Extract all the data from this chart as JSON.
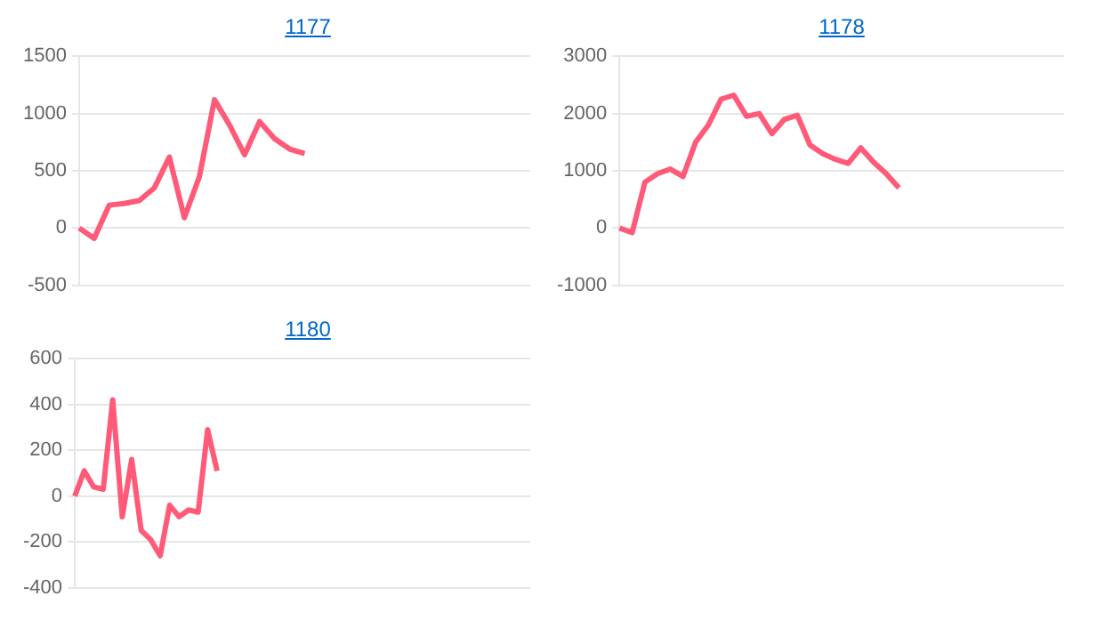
{
  "chart_data": [
    {
      "type": "line",
      "title": "1177",
      "categories": [
        null,
        null,
        null,
        null,
        null,
        null,
        null,
        null,
        null,
        null,
        null,
        null,
        null,
        null,
        null,
        null,
        null,
        null,
        null,
        null,
        null,
        null,
        null,
        null,
        null,
        null,
        null,
        null,
        null,
        null,
        null
      ],
      "series": [
        {
          "color": "#ff5a78",
          "values": [
            0,
            -90,
            200,
            215,
            240,
            350,
            620,
            90,
            450,
            1120,
            900,
            640,
            930,
            780,
            690,
            650,
            null,
            null,
            null,
            null,
            null,
            null,
            null,
            null,
            null,
            null,
            null,
            null,
            null,
            null,
            null
          ]
        }
      ],
      "ylim": [
        -500,
        1500
      ],
      "yticks": [
        -500,
        0,
        500,
        1000,
        1500
      ],
      "grid": "y",
      "tick_labels": "y",
      "marker": "none",
      "line_style": "solid",
      "legend": false
    },
    {
      "type": "line",
      "title": "1178",
      "categories": [
        null,
        null,
        null,
        null,
        null,
        null,
        null,
        null,
        null,
        null,
        null,
        null,
        null,
        null,
        null,
        null,
        null,
        null,
        null,
        null,
        null,
        null,
        null,
        null,
        null,
        null,
        null,
        null,
        null,
        null,
        null,
        null,
        null,
        null,
        null,
        null
      ],
      "series": [
        {
          "color": "#ff5a78",
          "values": [
            0,
            -80,
            800,
            950,
            1030,
            900,
            1500,
            1800,
            2250,
            2320,
            1950,
            2000,
            1650,
            1900,
            1970,
            1450,
            1300,
            1200,
            1130,
            1400,
            1150,
            950,
            700,
            null,
            null,
            null,
            null,
            null,
            null,
            null,
            null,
            null,
            null,
            null,
            null,
            null
          ]
        }
      ],
      "ylim": [
        -1000,
        3000
      ],
      "yticks": [
        -1000,
        0,
        1000,
        2000,
        3000
      ],
      "grid": "y",
      "tick_labels": "y",
      "marker": "none",
      "line_style": "solid",
      "legend": false
    },
    {
      "type": "line",
      "title": "1180",
      "categories": [
        null,
        null,
        null,
        null,
        null,
        null,
        null,
        null,
        null,
        null,
        null,
        null,
        null,
        null,
        null,
        null,
        null,
        null,
        null,
        null,
        null,
        null,
        null,
        null,
        null,
        null,
        null,
        null,
        null,
        null,
        null,
        null,
        null,
        null,
        null,
        null,
        null,
        null,
        null,
        null,
        null,
        null,
        null,
        null,
        null,
        null,
        null,
        null,
        null
      ],
      "series": [
        {
          "color": "#ff5a78",
          "values": [
            0,
            110,
            40,
            30,
            420,
            -90,
            160,
            -150,
            -190,
            -260,
            -40,
            -90,
            -60,
            -70,
            290,
            110,
            null,
            null,
            null,
            null,
            null,
            null,
            null,
            null,
            null,
            null,
            null,
            null,
            null,
            null,
            null,
            null,
            null,
            null,
            null,
            null,
            null,
            null,
            null,
            null,
            null,
            null,
            null,
            null,
            null,
            null,
            null,
            null,
            null
          ]
        }
      ],
      "ylim": [
        -400,
        600
      ],
      "yticks": [
        -400,
        -200,
        0,
        200,
        400,
        600
      ],
      "grid": "y",
      "tick_labels": "y",
      "marker": "none",
      "line_style": "solid",
      "legend": false
    }
  ]
}
